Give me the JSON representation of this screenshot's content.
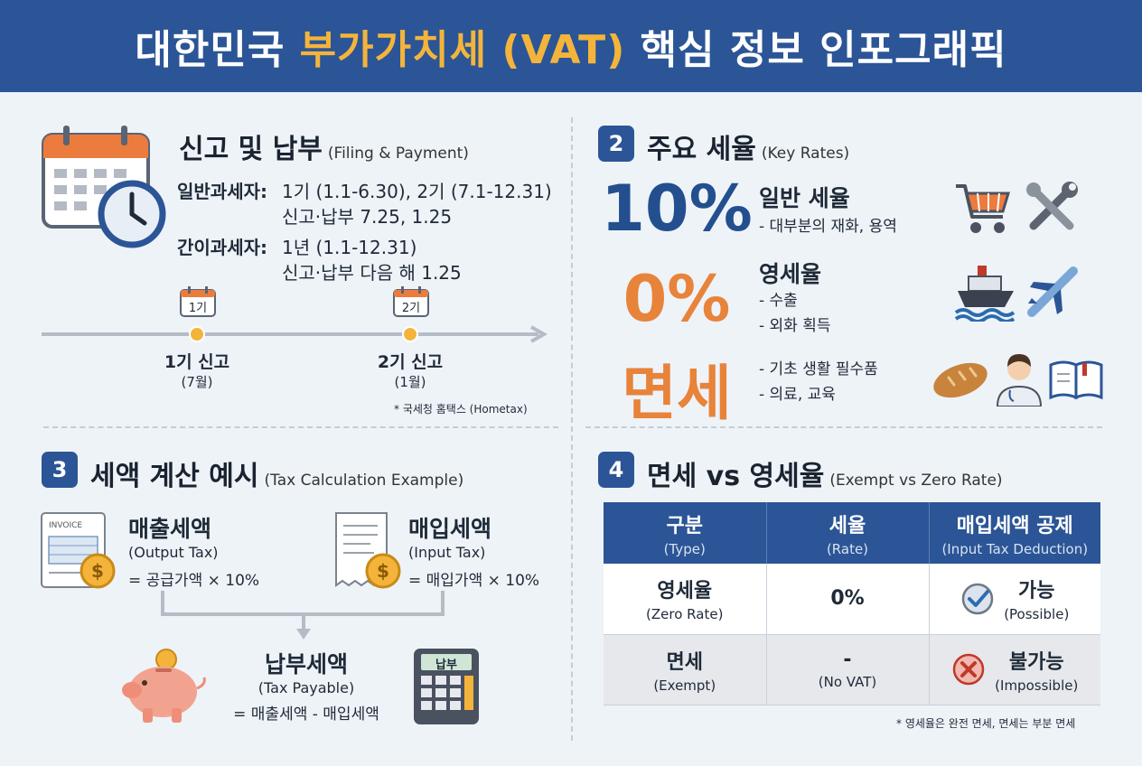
{
  "header": {
    "title_part1": "대한민국 ",
    "title_highlight": "부가가치세 (VAT)",
    "title_part2": " 핵심 정보 인포그래픽",
    "highlight_color": "#f4b43b",
    "bg_color": "#2b5596"
  },
  "section1": {
    "title": "신고 및 납부",
    "subtitle": "(Filing & Payment)",
    "general_label": "일반과세자:",
    "general_line1": "1기 (1.1-6.30), 2기 (7.1-12.31)",
    "general_line2": "신고·납부 7.25, 1.25",
    "simple_label": "간이과세자:",
    "simple_line1": "1년 (1.1-12.31)",
    "simple_line2": "신고·납부 다음 해 1.25",
    "timeline": [
      {
        "calendar": "1기",
        "label": "1기 신고",
        "sub": "(7월)"
      },
      {
        "calendar": "2기",
        "label": "2기 신고",
        "sub": "(1월)"
      }
    ],
    "note": "* 국세청 홈택스 (Hometax)"
  },
  "section2": {
    "number": "2",
    "title": "주요 세율",
    "subtitle": "(Key Rates)",
    "rates": [
      {
        "big": "10%",
        "name": "일반 세율",
        "lines": [
          "- 대부분의 재화, 용역"
        ],
        "color": "#234f8f",
        "icons": [
          "shopping-cart-icon",
          "wrench-icon"
        ]
      },
      {
        "big": "0%",
        "name": "영세율",
        "lines": [
          "- 수출",
          "- 외화 획득"
        ],
        "color": "#e8833a",
        "icons": [
          "ship-icon",
          "airplane-icon"
        ]
      },
      {
        "big": "면세",
        "name": "",
        "lines": [
          "- 기초 생활 필수품",
          "- 의료, 교육"
        ],
        "color": "#e8833a",
        "icons": [
          "bread-icon",
          "doctor-icon",
          "book-icon"
        ]
      }
    ]
  },
  "section3": {
    "number": "3",
    "title": "세액 계산 예시",
    "subtitle": "(Tax Calculation Example)",
    "output": {
      "title": "매출세액",
      "en": "(Output Tax)",
      "formula": "= 공급가액 × 10%",
      "doc_label": "INVOICE"
    },
    "input": {
      "title": "매입세액",
      "en": "(Input Tax)",
      "formula": "= 매입가액 × 10%"
    },
    "payable": {
      "title": "납부세액",
      "en": "(Tax Payable)",
      "formula": "= 매출세액 - 매입세액",
      "calc_label": "납부"
    }
  },
  "section4": {
    "number": "4",
    "title": "면세 vs 영세율",
    "subtitle": "(Exempt vs Zero Rate)",
    "columns": [
      {
        "ko": "구분",
        "en": "(Type)"
      },
      {
        "ko": "세율",
        "en": "(Rate)"
      },
      {
        "ko": "매입세액 공제",
        "en": "(Input Tax Deduction)"
      }
    ],
    "rows": [
      {
        "type_ko": "영세율",
        "type_en": "(Zero Rate)",
        "rate": "0%",
        "rate_sub": "",
        "ded_ko": "가능",
        "ded_en": "(Possible)",
        "icon": "check-circle-icon"
      },
      {
        "type_ko": "면세",
        "type_en": "(Exempt)",
        "rate": "-",
        "rate_sub": "(No VAT)",
        "ded_ko": "불가능",
        "ded_en": "(Impossible)",
        "icon": "x-circle-icon"
      }
    ],
    "note": "* 영세율은 완전 면세, 면세는 부분 면세"
  }
}
